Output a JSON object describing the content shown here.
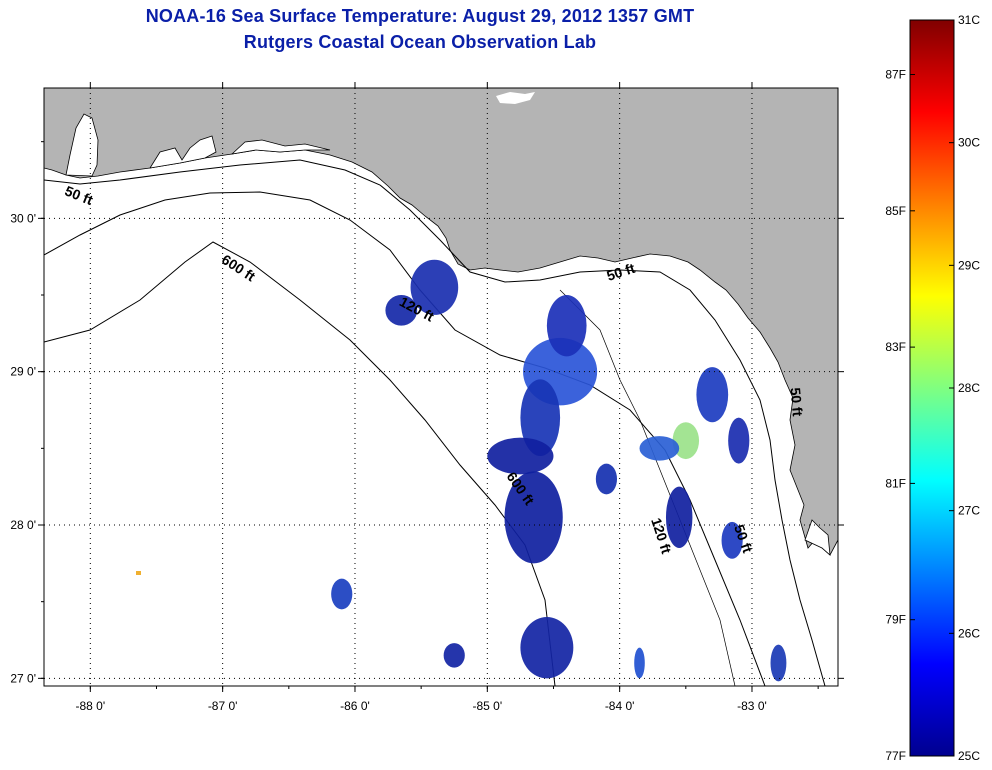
{
  "title_line1": "NOAA-16 Sea Surface Temperature:  August 29, 2012 1357 GMT",
  "title_line2": "Rutgers Coastal Ocean Observation Lab",
  "map": {
    "lon_range": [
      -88.35,
      -82.35
    ],
    "lat_range": [
      26.95,
      30.85
    ],
    "lon_ticks": [
      {
        "value": -88,
        "label": "-88 0'"
      },
      {
        "value": -87,
        "label": "-87 0'"
      },
      {
        "value": -86,
        "label": "-86 0'"
      },
      {
        "value": -85,
        "label": "-85 0'"
      },
      {
        "value": -84,
        "label": "-84 0'"
      },
      {
        "value": -83,
        "label": "-83 0'"
      }
    ],
    "lat_ticks": [
      {
        "value": 30,
        "label": "30 0'"
      },
      {
        "value": 29,
        "label": "29 0'"
      },
      {
        "value": 28,
        "label": "28 0'"
      },
      {
        "value": 27,
        "label": "27 0'"
      }
    ],
    "land_color": "#b4b4b4",
    "water_color": "#ffffff",
    "isobath_labels": [
      {
        "text": "50 ft",
        "lon": -88.1,
        "lat": 30.12,
        "rot": 22
      },
      {
        "text": "600 ft",
        "lon": -86.9,
        "lat": 29.65,
        "rot": 33
      },
      {
        "text": "120 ft",
        "lon": -85.55,
        "lat": 29.38,
        "rot": 28
      },
      {
        "text": "50 ft",
        "lon": -83.98,
        "lat": 29.62,
        "rot": -18
      },
      {
        "text": "600 ft",
        "lon": -84.78,
        "lat": 28.22,
        "rot": 55
      },
      {
        "text": "120 ft",
        "lon": -83.72,
        "lat": 27.92,
        "rot": 72
      },
      {
        "text": "50 ft",
        "lon": -83.1,
        "lat": 27.9,
        "rot": 70
      },
      {
        "text": "50 ft",
        "lon": -82.7,
        "lat": 28.8,
        "rot": 85
      }
    ],
    "sst_patches": [
      {
        "lon": -85.4,
        "lat": 29.55,
        "rx": 0.18,
        "ry": 0.18,
        "color": "#1a2fb0"
      },
      {
        "lon": -85.65,
        "lat": 29.4,
        "rx": 0.12,
        "ry": 0.1,
        "color": "#1528a8"
      },
      {
        "lon": -84.45,
        "lat": 29.0,
        "rx": 0.28,
        "ry": 0.22,
        "color": "#2a55d8"
      },
      {
        "lon": -84.4,
        "lat": 29.3,
        "rx": 0.15,
        "ry": 0.2,
        "color": "#1b30b8"
      },
      {
        "lon": -84.6,
        "lat": 28.7,
        "rx": 0.15,
        "ry": 0.25,
        "color": "#1834b5"
      },
      {
        "lon": -84.75,
        "lat": 28.45,
        "rx": 0.25,
        "ry": 0.12,
        "color": "#1020a0"
      },
      {
        "lon": -84.65,
        "lat": 28.05,
        "rx": 0.22,
        "ry": 0.3,
        "color": "#0f1fa0"
      },
      {
        "lon": -84.55,
        "lat": 27.2,
        "rx": 0.2,
        "ry": 0.2,
        "color": "#1224a4"
      },
      {
        "lon": -84.1,
        "lat": 28.3,
        "rx": 0.08,
        "ry": 0.1,
        "color": "#1530b0"
      },
      {
        "lon": -83.5,
        "lat": 28.55,
        "rx": 0.1,
        "ry": 0.12,
        "color": "#9be28a"
      },
      {
        "lon": -83.7,
        "lat": 28.5,
        "rx": 0.15,
        "ry": 0.08,
        "color": "#2a5fd5"
      },
      {
        "lon": -83.3,
        "lat": 28.85,
        "rx": 0.12,
        "ry": 0.18,
        "color": "#1c3cc0"
      },
      {
        "lon": -83.1,
        "lat": 28.55,
        "rx": 0.08,
        "ry": 0.15,
        "color": "#1a2cb0"
      },
      {
        "lon": -83.55,
        "lat": 28.05,
        "rx": 0.1,
        "ry": 0.2,
        "color": "#1020a0"
      },
      {
        "lon": -83.15,
        "lat": 27.9,
        "rx": 0.08,
        "ry": 0.12,
        "color": "#1c3ac0"
      },
      {
        "lon": -86.1,
        "lat": 27.55,
        "rx": 0.08,
        "ry": 0.1,
        "color": "#1a3fc0"
      },
      {
        "lon": -85.25,
        "lat": 27.15,
        "rx": 0.08,
        "ry": 0.08,
        "color": "#1224a4"
      },
      {
        "lon": -82.8,
        "lat": 27.1,
        "rx": 0.06,
        "ry": 0.12,
        "color": "#1a3ab5"
      },
      {
        "lon": -83.85,
        "lat": 27.1,
        "rx": 0.04,
        "ry": 0.1,
        "color": "#2050d0"
      }
    ]
  },
  "colorbar": {
    "stops": [
      "#00008f",
      "#0000ff",
      "#0080ff",
      "#00ffff",
      "#80ff80",
      "#ffff00",
      "#ff8000",
      "#ff0000",
      "#800000"
    ],
    "celsius_ticks": [
      {
        "value": 25,
        "label": "25C"
      },
      {
        "value": 26,
        "label": "26C"
      },
      {
        "value": 27,
        "label": "27C"
      },
      {
        "value": 28,
        "label": "28C"
      },
      {
        "value": 29,
        "label": "29C"
      },
      {
        "value": 30,
        "label": "30C"
      },
      {
        "value": 31,
        "label": "31C"
      }
    ],
    "fahrenheit_ticks": [
      {
        "value": 77,
        "label": "77F"
      },
      {
        "value": 79,
        "label": "79F"
      },
      {
        "value": 81,
        "label": "81F"
      },
      {
        "value": 83,
        "label": "83F"
      },
      {
        "value": 85,
        "label": "85F"
      },
      {
        "value": 87,
        "label": "87F"
      }
    ],
    "range_c": [
      25,
      31
    ]
  }
}
